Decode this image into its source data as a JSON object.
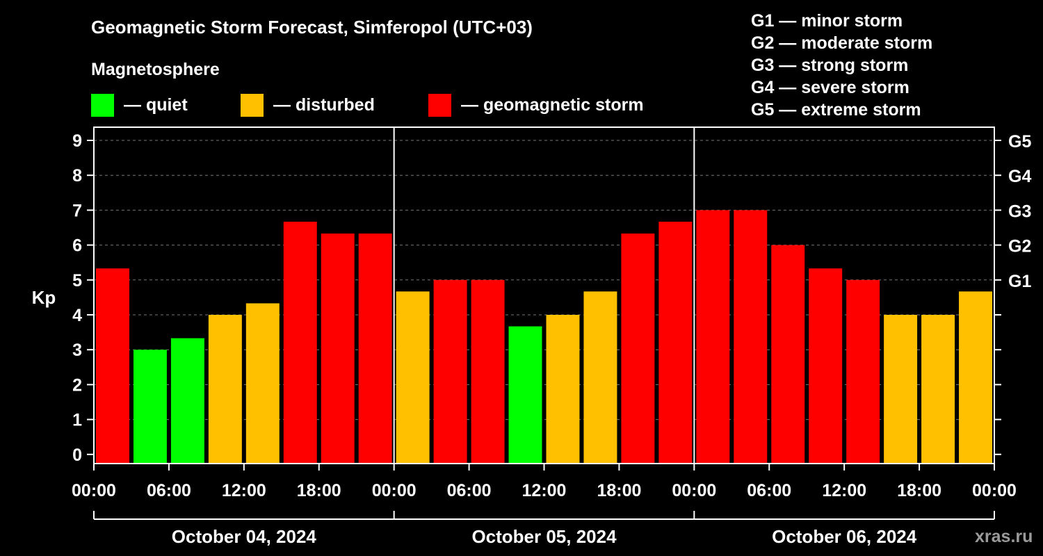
{
  "chart_data": {
    "type": "bar",
    "title": "Geomagnetic Storm Forecast, Simferopol (UTC+03)",
    "ylabel": "Kp",
    "ylim": [
      0,
      9
    ],
    "yticks": [
      "0",
      "1",
      "2",
      "3",
      "4",
      "5",
      "6",
      "7",
      "8",
      "9"
    ],
    "right_axis_labels": [
      {
        "kp": 5,
        "label": "G1"
      },
      {
        "kp": 6,
        "label": "G2"
      },
      {
        "kp": 7,
        "label": "G3"
      },
      {
        "kp": 8,
        "label": "G4"
      },
      {
        "kp": 9,
        "label": "G5"
      }
    ],
    "grid": "horizontal dashed",
    "x_tick_labels": [
      "00:00",
      "06:00",
      "12:00",
      "18:00",
      "00:00",
      "06:00",
      "12:00",
      "18:00",
      "00:00",
      "06:00",
      "12:00",
      "18:00",
      "00:00"
    ],
    "days": [
      "October 04, 2024",
      "October 05, 2024",
      "October 06, 2024"
    ],
    "values": [
      5.33,
      3.0,
      3.33,
      4.0,
      4.33,
      6.67,
      6.33,
      6.33,
      4.67,
      5.0,
      5.0,
      3.67,
      4.0,
      4.67,
      6.33,
      6.67,
      7.0,
      7.0,
      6.0,
      5.33,
      5.0,
      4.0,
      4.0,
      4.67
    ],
    "levels": [
      "storm",
      "quiet",
      "quiet",
      "disturbed",
      "disturbed",
      "storm",
      "storm",
      "storm",
      "disturbed",
      "storm",
      "storm",
      "quiet",
      "disturbed",
      "disturbed",
      "storm",
      "storm",
      "storm",
      "storm",
      "storm",
      "storm",
      "storm",
      "disturbed",
      "disturbed",
      "disturbed"
    ]
  },
  "legend": {
    "heading": "Magnetosphere",
    "items": [
      {
        "key": "quiet",
        "label": "— quiet",
        "color": "#00ff00"
      },
      {
        "key": "disturbed",
        "label": "— disturbed",
        "color": "#ffc000"
      },
      {
        "key": "storm",
        "label": "— geomagnetic storm",
        "color": "#ff0000"
      }
    ]
  },
  "g_scale": [
    "G1 — minor storm",
    "G2 — moderate storm",
    "G3 — strong storm",
    "G4 — severe storm",
    "G5 — extreme storm"
  ],
  "watermark": "xras.ru"
}
